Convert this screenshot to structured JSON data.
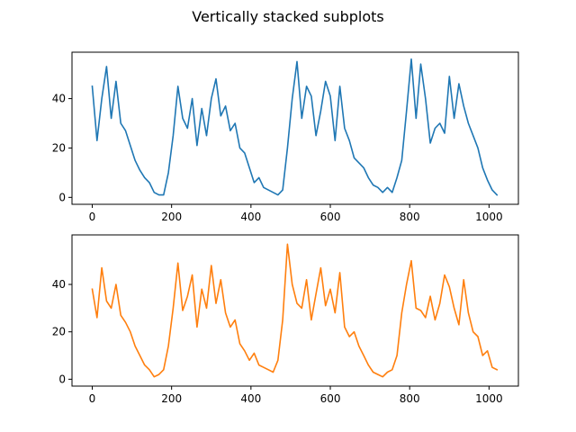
{
  "title": "Vertically stacked subplots",
  "colors": {
    "series1": "#1f77b4",
    "series2": "#ff7f0e",
    "axes": "#000000",
    "background": "#ffffff"
  },
  "chart_data": [
    {
      "type": "line",
      "title": "",
      "xlabel": "",
      "ylabel": "",
      "xlim": [
        -51,
        1074
      ],
      "ylim": [
        -2.8,
        58.8
      ],
      "xticks": [
        0,
        200,
        400,
        600,
        800,
        1000
      ],
      "yticks": [
        0,
        20,
        40
      ],
      "grid": false,
      "legend": "none",
      "series": [
        {
          "color": "#1f77b4",
          "x": [
            0,
            12,
            24,
            36,
            48,
            60,
            72,
            84,
            96,
            108,
            120,
            132,
            144,
            156,
            168,
            180,
            192,
            204,
            216,
            228,
            240,
            252,
            264,
            276,
            288,
            300,
            312,
            324,
            336,
            348,
            360,
            372,
            384,
            396,
            408,
            420,
            432,
            444,
            456,
            468,
            480,
            492,
            504,
            516,
            528,
            540,
            552,
            564,
            576,
            588,
            600,
            612,
            624,
            636,
            648,
            660,
            672,
            684,
            696,
            708,
            720,
            732,
            744,
            756,
            768,
            780,
            792,
            804,
            816,
            828,
            840,
            852,
            864,
            876,
            888,
            900,
            912,
            924,
            936,
            948,
            960,
            972,
            984,
            996,
            1008,
            1020
          ],
          "y": [
            45,
            23,
            40,
            53,
            32,
            47,
            30,
            27,
            21,
            15,
            11,
            8,
            6,
            2,
            1,
            1,
            10,
            25,
            45,
            32,
            28,
            40,
            21,
            36,
            25,
            40,
            48,
            33,
            37,
            27,
            30,
            20,
            18,
            12,
            6,
            8,
            4,
            3,
            2,
            1,
            3,
            20,
            40,
            55,
            32,
            45,
            41,
            25,
            35,
            47,
            41,
            23,
            45,
            28,
            23,
            16,
            14,
            12,
            8,
            5,
            4,
            2,
            4,
            2,
            8,
            15,
            35,
            56,
            32,
            54,
            40,
            22,
            28,
            30,
            26,
            49,
            32,
            46,
            37,
            30,
            25,
            20,
            12,
            7,
            3,
            1
          ]
        }
      ]
    },
    {
      "type": "line",
      "title": "",
      "xlabel": "",
      "ylabel": "",
      "xlim": [
        -51,
        1074
      ],
      "ylim": [
        -2.9,
        60.9
      ],
      "xticks": [
        0,
        200,
        400,
        600,
        800,
        1000
      ],
      "yticks": [
        0,
        20,
        40
      ],
      "grid": false,
      "legend": "none",
      "series": [
        {
          "color": "#ff7f0e",
          "x": [
            0,
            12,
            24,
            36,
            48,
            60,
            72,
            84,
            96,
            108,
            120,
            132,
            144,
            156,
            168,
            180,
            192,
            204,
            216,
            228,
            240,
            252,
            264,
            276,
            288,
            300,
            312,
            324,
            336,
            348,
            360,
            372,
            384,
            396,
            408,
            420,
            432,
            444,
            456,
            468,
            480,
            492,
            504,
            516,
            528,
            540,
            552,
            564,
            576,
            588,
            600,
            612,
            624,
            636,
            648,
            660,
            672,
            684,
            696,
            708,
            720,
            732,
            744,
            756,
            768,
            780,
            792,
            804,
            816,
            828,
            840,
            852,
            864,
            876,
            888,
            900,
            912,
            924,
            936,
            948,
            960,
            972,
            984,
            996,
            1008,
            1020
          ],
          "y": [
            38,
            26,
            47,
            33,
            30,
            40,
            27,
            24,
            20,
            14,
            10,
            6,
            4,
            1,
            2,
            4,
            14,
            30,
            49,
            29,
            35,
            44,
            22,
            38,
            30,
            48,
            32,
            42,
            28,
            22,
            25,
            15,
            12,
            8,
            11,
            6,
            5,
            4,
            3,
            8,
            25,
            57,
            40,
            32,
            30,
            42,
            25,
            36,
            47,
            31,
            38,
            28,
            45,
            22,
            18,
            20,
            14,
            10,
            6,
            3,
            2,
            1,
            3,
            4,
            10,
            28,
            40,
            50,
            30,
            29,
            26,
            35,
            25,
            32,
            44,
            39,
            30,
            23,
            42,
            28,
            20,
            18,
            10,
            12,
            5,
            4
          ]
        }
      ]
    }
  ]
}
